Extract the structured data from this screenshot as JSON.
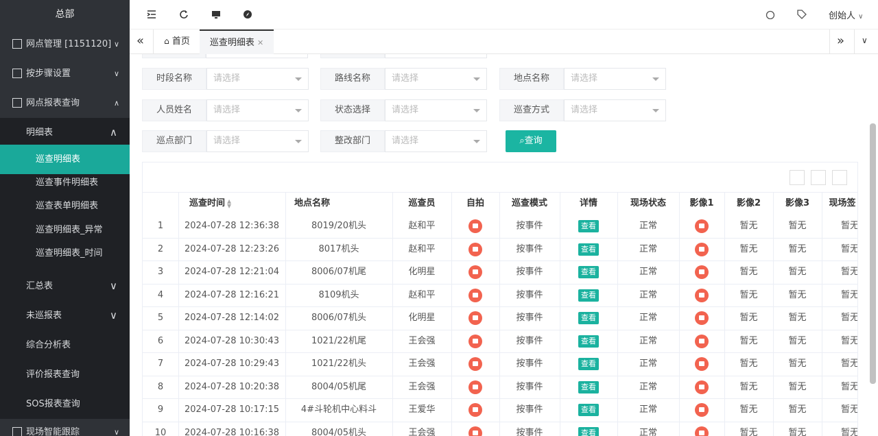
{
  "sidebar": {
    "title": "总部",
    "items": [
      {
        "label": "网点管理 [1151120]"
      },
      {
        "label": "按步骤设置"
      },
      {
        "label": "网点报表查询"
      },
      {
        "label": "明细表"
      },
      {
        "label": "巡查明细表"
      },
      {
        "label": "巡查事件明细表"
      },
      {
        "label": "巡查表单明细表"
      },
      {
        "label": "巡查明细表_异常"
      },
      {
        "label": "巡查明细表_时间"
      },
      {
        "label": "汇总表"
      },
      {
        "label": "未巡报表"
      },
      {
        "label": "综合分析表"
      },
      {
        "label": "评价报表查询"
      },
      {
        "label": "SOS报表查询"
      },
      {
        "label": "现场智能跟踪"
      }
    ]
  },
  "topbar": {
    "user": "创始人"
  },
  "tabs": [
    {
      "label": "首页"
    },
    {
      "label": "巡查明细表"
    }
  ],
  "filters": [
    {
      "label": "时段名称",
      "placeholder": "请选择"
    },
    {
      "label": "路线名称",
      "placeholder": "请选择"
    },
    {
      "label": "地点名称",
      "placeholder": "请选择"
    },
    {
      "label": "人员姓名",
      "placeholder": "请选择"
    },
    {
      "label": "状态选择",
      "placeholder": "请选择"
    },
    {
      "label": "巡查方式",
      "placeholder": "请选择"
    },
    {
      "label": "巡点部门",
      "placeholder": "请选择"
    },
    {
      "label": "整改部门",
      "placeholder": "请选择"
    }
  ],
  "query_button": "查询",
  "table": {
    "columns": [
      "巡查时间",
      "地点名称",
      "巡查员",
      "自拍",
      "巡查模式",
      "详情",
      "现场状态",
      "影像1",
      "影像2",
      "影像3",
      "现场签"
    ],
    "rows": [
      {
        "no": 1,
        "time": "2024-07-28 12:36:38",
        "place": "8019/20机头",
        "inspector": "赵和平",
        "mode": "按事件",
        "detail": "查看",
        "status": "正常",
        "image2": "暂无",
        "image3": "暂无",
        "sign": "暂无"
      },
      {
        "no": 2,
        "time": "2024-07-28 12:23:26",
        "place": "8017机头",
        "inspector": "赵和平",
        "mode": "按事件",
        "detail": "查看",
        "status": "正常",
        "image2": "暂无",
        "image3": "暂无",
        "sign": "暂无"
      },
      {
        "no": 3,
        "time": "2024-07-28 12:21:04",
        "place": "8006/07机尾",
        "inspector": "化明星",
        "mode": "按事件",
        "detail": "查看",
        "status": "正常",
        "image2": "暂无",
        "image3": "暂无",
        "sign": "暂无"
      },
      {
        "no": 4,
        "time": "2024-07-28 12:16:21",
        "place": "8109机头",
        "inspector": "赵和平",
        "mode": "按事件",
        "detail": "查看",
        "status": "正常",
        "image2": "暂无",
        "image3": "暂无",
        "sign": "暂无"
      },
      {
        "no": 5,
        "time": "2024-07-28 12:14:02",
        "place": "8006/07机头",
        "inspector": "化明星",
        "mode": "按事件",
        "detail": "查看",
        "status": "正常",
        "image2": "暂无",
        "image3": "暂无",
        "sign": "暂无"
      },
      {
        "no": 6,
        "time": "2024-07-28 10:30:43",
        "place": "1021/22机尾",
        "inspector": "王会强",
        "mode": "按事件",
        "detail": "查看",
        "status": "正常",
        "image2": "暂无",
        "image3": "暂无",
        "sign": "暂无"
      },
      {
        "no": 7,
        "time": "2024-07-28 10:29:43",
        "place": "1021/22机头",
        "inspector": "王会强",
        "mode": "按事件",
        "detail": "查看",
        "status": "正常",
        "image2": "暂无",
        "image3": "暂无",
        "sign": "暂无"
      },
      {
        "no": 8,
        "time": "2024-07-28 10:20:38",
        "place": "8004/05机尾",
        "inspector": "王会强",
        "mode": "按事件",
        "detail": "查看",
        "status": "正常",
        "image2": "暂无",
        "image3": "暂无",
        "sign": "暂无"
      },
      {
        "no": 9,
        "time": "2024-07-28 10:17:15",
        "place": "4#斗轮机中心料斗",
        "inspector": "王爱华",
        "mode": "按事件",
        "detail": "查看",
        "status": "正常",
        "image2": "暂无",
        "image3": "暂无",
        "sign": "暂无"
      },
      {
        "no": 10,
        "time": "2024-07-28 10:16:38",
        "place": "8004/05机头",
        "inspector": "王会强",
        "mode": "按事件",
        "detail": "查看",
        "status": "正常",
        "image2": "暂无",
        "image3": "暂无",
        "sign": "暂无"
      }
    ]
  }
}
